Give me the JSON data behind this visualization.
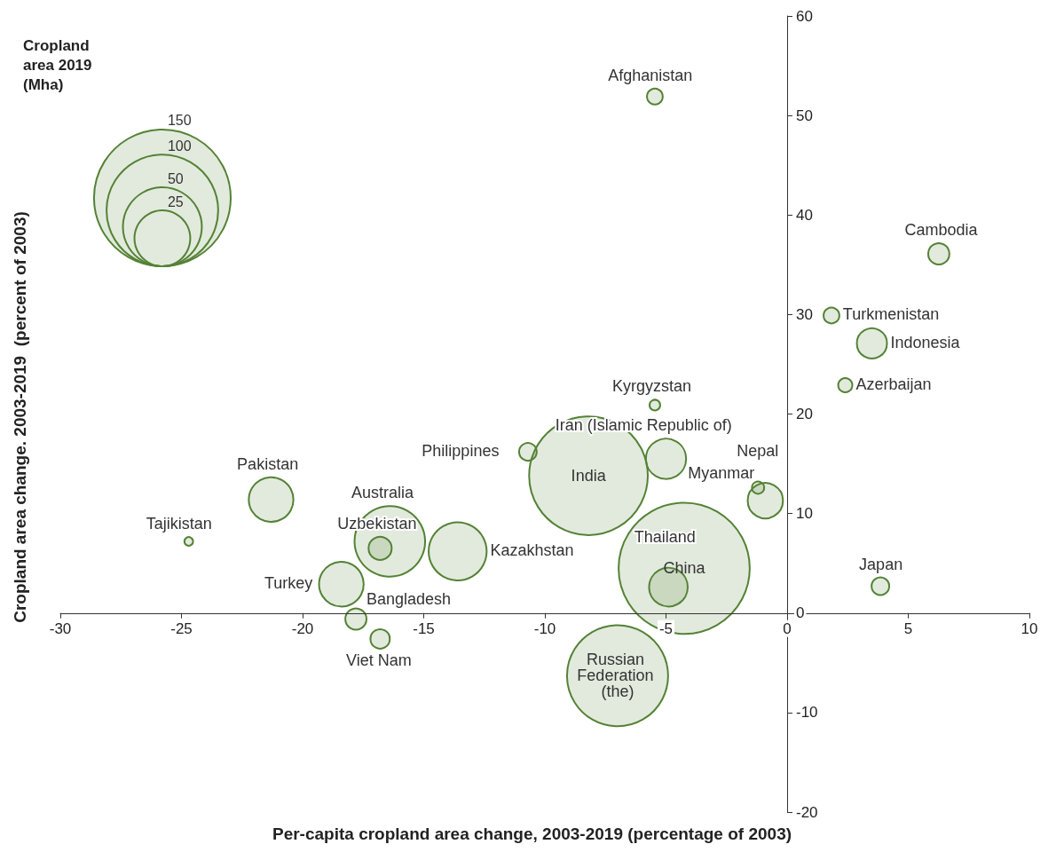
{
  "chart_data": {
    "type": "bubble",
    "xlabel": "Per-capita cropland area change, 2003-2019 (percentage of 2003)",
    "ylabel": "Cropland area change. 2003-2019  (percent of 2003)",
    "legend_title": "Cropland area 2019 (Mha)",
    "size_legend": [
      150,
      100,
      50,
      25
    ],
    "color": "#548235",
    "marker": "circle",
    "grid": false,
    "x": [
      -5.46,
      6.26,
      1.83,
      3.5,
      2.4,
      -5.46,
      -10.7,
      -5.0,
      -8.2,
      -1.2,
      -0.9,
      -21.3,
      -24.7,
      -16.4,
      -16.8,
      -13.6,
      -4.25,
      -18.4,
      -4.9,
      3.85,
      -17.8,
      -16.8,
      -7.0
    ],
    "values": [
      51.9,
      36.1,
      29.9,
      27.1,
      22.9,
      20.9,
      16.2,
      15.5,
      13.8,
      12.6,
      11.3,
      11.4,
      7.2,
      7.2,
      6.5,
      6.2,
      4.5,
      2.9,
      2.6,
      2.7,
      -0.6,
      -2.6,
      -6.3
    ],
    "sizes": [
      2,
      3.6,
      2,
      7.3,
      1.6,
      0.9,
      2.5,
      13,
      113,
      1.2,
      10,
      16,
      0.6,
      40,
      4.3,
      27,
      138,
      16,
      12,
      2.5,
      3.6,
      3,
      82
    ],
    "annotations": [
      {
        "text": "Afghanistan",
        "x": -5.46,
        "y": 51.9
      },
      {
        "text": "Cambodia",
        "x": 6.26,
        "y": 36.1
      },
      {
        "text": "Turkmenistan",
        "x": 1.83,
        "y": 29.9
      },
      {
        "text": "Indonesia",
        "x": 3.5,
        "y": 27.1
      },
      {
        "text": "Azerbaijan",
        "x": 2.4,
        "y": 22.9
      },
      {
        "text": "Kyrgyzstan",
        "x": -5.46,
        "y": 20.9
      },
      {
        "text": "Philippines",
        "x": -10.7,
        "y": 16.2
      },
      {
        "text": "Iran (Islamic Republic of)",
        "x": -5.0,
        "y": 15.5
      },
      {
        "text": "India",
        "x": -8.2,
        "y": 13.8
      },
      {
        "text": "Nepal",
        "x": -1.2,
        "y": 12.6
      },
      {
        "text": "Myanmar",
        "x": -0.9,
        "y": 11.3
      },
      {
        "text": "Pakistan",
        "x": -21.3,
        "y": 11.4
      },
      {
        "text": "Tajikistan",
        "x": -24.7,
        "y": 7.2
      },
      {
        "text": "Australia",
        "x": -16.4,
        "y": 7.2
      },
      {
        "text": "Uzbekistan",
        "x": -16.8,
        "y": 6.5
      },
      {
        "text": "Kazakhstan",
        "x": -13.6,
        "y": 6.2
      },
      {
        "text": "China",
        "x": -4.25,
        "y": 4.5
      },
      {
        "text": "Turkey",
        "x": -18.4,
        "y": 2.9
      },
      {
        "text": "Thailand",
        "x": -4.9,
        "y": 2.6
      },
      {
        "text": "Japan",
        "x": 3.85,
        "y": 2.7
      },
      {
        "text": "Bangladesh",
        "x": -17.8,
        "y": -0.6
      },
      {
        "text": "Viet Nam",
        "x": -16.8,
        "y": -2.6
      },
      {
        "text": "Russian Federation (the)",
        "x": -7.0,
        "y": -6.3
      }
    ],
    "xlim": [
      -30,
      10
    ],
    "xticks": [
      -30,
      -25,
      -20,
      -15,
      -10,
      -5,
      0,
      5,
      10
    ],
    "ylim": [
      -20,
      60
    ],
    "yticks": [
      -20,
      -10,
      0,
      10,
      20,
      30,
      40,
      50,
      60
    ]
  }
}
